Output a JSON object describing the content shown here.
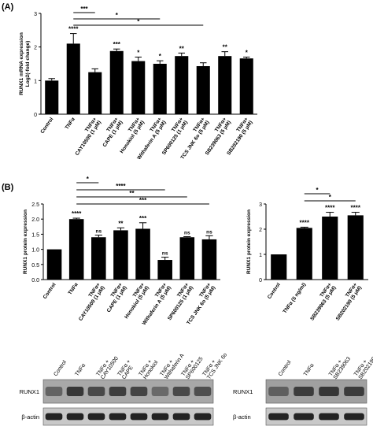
{
  "chart_data": [
    {
      "panel_label": "(A)",
      "type": "bar",
      "ylabel": "RUNX1 mRNA expression\nLog2(-fold change)",
      "ylim": [
        0,
        3
      ],
      "yticks": [
        "0",
        "1",
        "2",
        "3"
      ],
      "categories": [
        "Control",
        "TNFα",
        "TNFα+\nCAY10500 (1 μM)",
        "TNFα+\nCAPE (1 μM)",
        "TNFα+\nHonokiol (5 μM)",
        "TNFα+\nWithaferin A (5 μM)",
        "TNFα+\nSP600125 (1 μM)",
        "TNFα+\nTCS JNK 6o (5 μM)",
        "TNFα+\nSB239063 (5 μM)",
        "TNFα+\nSB202190 (5 μM)"
      ],
      "values": [
        1.0,
        2.1,
        1.25,
        1.88,
        1.58,
        1.5,
        1.73,
        1.43,
        1.73,
        1.66
      ],
      "errors": [
        0.06,
        0.3,
        0.1,
        0.06,
        0.12,
        0.09,
        0.09,
        0.1,
        0.13,
        0.04
      ],
      "annotations": [
        "",
        "****",
        "",
        "***",
        "*",
        "*",
        "**",
        "",
        "**",
        "*"
      ],
      "brackets": [
        {
          "from": 1,
          "to": 2,
          "label": "***"
        },
        {
          "from": 1,
          "to": 5,
          "label": "*"
        },
        {
          "from": 1,
          "to": 7,
          "label": "*"
        }
      ]
    },
    {
      "panel_label": "(B)",
      "type": "bar",
      "ylabel": "RUNX1 protein expression",
      "ylim": [
        0,
        2.5
      ],
      "yticks": [
        "0.0",
        "0.5",
        "1.0",
        "1.5",
        "2.0",
        "2.5"
      ],
      "categories": [
        "Control",
        "TNFα",
        "TNFα+\nCAY10500 (1 μM)",
        "TNFα+\nCAPE (1 μM)",
        "TNFα+\nHonokiol (5 μM)",
        "TNFα+\nWithaferin A (5 μM)",
        "TNFα+\nSP600125 (1 μM)",
        "TNFα+\nTCS JNK 6o (5 μM)"
      ],
      "values": [
        1.0,
        2.0,
        1.4,
        1.63,
        1.68,
        0.65,
        1.4,
        1.33
      ],
      "errors": [
        0.0,
        0.03,
        0.07,
        0.08,
        0.2,
        0.09,
        0.02,
        0.12
      ],
      "annotations": [
        "",
        "****",
        "ns",
        "**",
        "***",
        "ns",
        "ns",
        "ns"
      ],
      "brackets": [
        {
          "from": 1,
          "to": 2,
          "label": "*"
        },
        {
          "from": 1,
          "to": 5,
          "label": "****"
        },
        {
          "from": 1,
          "to": 6,
          "label": "**"
        },
        {
          "from": 1,
          "to": 7,
          "label": "***"
        }
      ]
    },
    {
      "type": "bar",
      "ylabel": "RUNX1 protein expression",
      "ylim": [
        0,
        3
      ],
      "yticks": [
        "0",
        "1",
        "2",
        "3"
      ],
      "categories": [
        "Control",
        "TNFα (5 ng/ml)",
        "TNFα+\nSB239063 (5 μM)",
        "TNFα+\nSB202190 (5 μM)"
      ],
      "values": [
        1.0,
        2.05,
        2.5,
        2.55
      ],
      "errors": [
        0.0,
        0.03,
        0.17,
        0.12
      ],
      "annotations": [
        "",
        "****",
        "****",
        "****"
      ],
      "brackets": [
        {
          "from": 1,
          "to": 2,
          "label": "*"
        },
        {
          "from": 1,
          "to": 3,
          "label": "*"
        }
      ]
    }
  ],
  "blots": {
    "left": {
      "lanes": [
        "Control",
        "TNFα",
        "TNFα +\nCAY10500",
        "TNFα +\nCAPE",
        "TNFα +\nHonokiol",
        "TNFα +\nWithaferin A",
        "TNFα +\nSP600125",
        "TNFα +\nTCS JNK 6o"
      ],
      "rows": [
        "RUNX1",
        "β-actin"
      ]
    },
    "right": {
      "lanes": [
        "Control",
        "TNFα",
        "TNFα +\nSB239063",
        "TNFα +\nSB202190"
      ],
      "rows": [
        "RUNX1",
        "β-actin"
      ]
    }
  }
}
